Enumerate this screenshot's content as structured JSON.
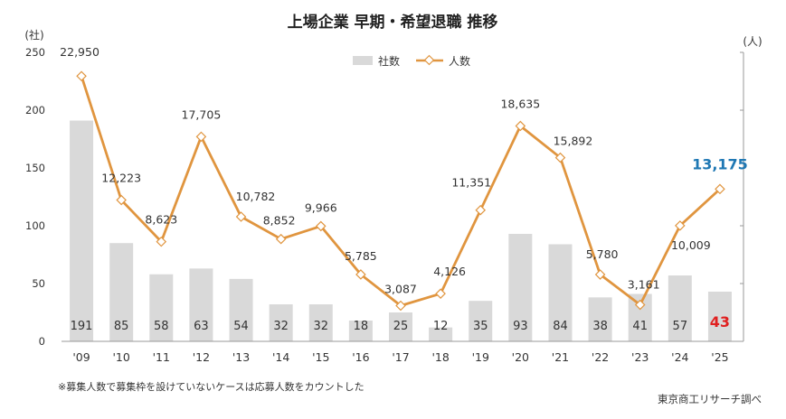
{
  "chart_data": {
    "type": "bar+line",
    "title": "上場企業 早期・希望退職 推移",
    "categories": [
      "'09",
      "'10",
      "'11",
      "'12",
      "'13",
      "'14",
      "'15",
      "'16",
      "'17",
      "'18",
      "'19",
      "'20",
      "'21",
      "'22",
      "'23",
      "'24",
      "'25"
    ],
    "series": [
      {
        "name": "社数",
        "type": "bar",
        "axis": "left",
        "color": "#d9d9d9",
        "values": [
          191,
          85,
          58,
          63,
          54,
          32,
          32,
          18,
          25,
          12,
          35,
          93,
          84,
          38,
          41,
          57,
          43
        ],
        "labels": [
          "191",
          "85",
          "58",
          "63",
          "54",
          "32",
          "32",
          "18",
          "25",
          "12",
          "35",
          "93",
          "84",
          "38",
          "41",
          "57",
          "43"
        ],
        "highlight_index": 16,
        "highlight_color": "#e02020"
      },
      {
        "name": "人数",
        "type": "line",
        "axis": "right",
        "color": "#e0953f",
        "values": [
          22950,
          12223,
          8623,
          17705,
          10782,
          8852,
          9966,
          5785,
          3087,
          4126,
          11351,
          18635,
          15892,
          5780,
          3161,
          10009,
          13175
        ],
        "labels": [
          "22,950",
          "12,223",
          "8,623",
          "17,705",
          "10,782",
          "8,852",
          "9,966",
          "5,785",
          "3,087",
          "4,126",
          "11,351",
          "18,635",
          "15,892",
          "5,780",
          "3,161",
          "10,009",
          "13,175"
        ],
        "highlight_index": 16,
        "highlight_color": "#1f78b4"
      }
    ],
    "left_axis": {
      "unit": "(社)",
      "ylim": [
        0,
        250
      ],
      "ticks": [
        "0",
        "50",
        "100",
        "150",
        "200",
        "250"
      ]
    },
    "right_axis": {
      "unit": "(人)",
      "ylim": [
        0,
        25000
      ]
    },
    "legend_placement": "top-center",
    "grid": false,
    "footnote": "※募集人数で募集枠を設けていないケースは応募人数をカウントした",
    "source": "東京商工リサーチ調べ"
  }
}
